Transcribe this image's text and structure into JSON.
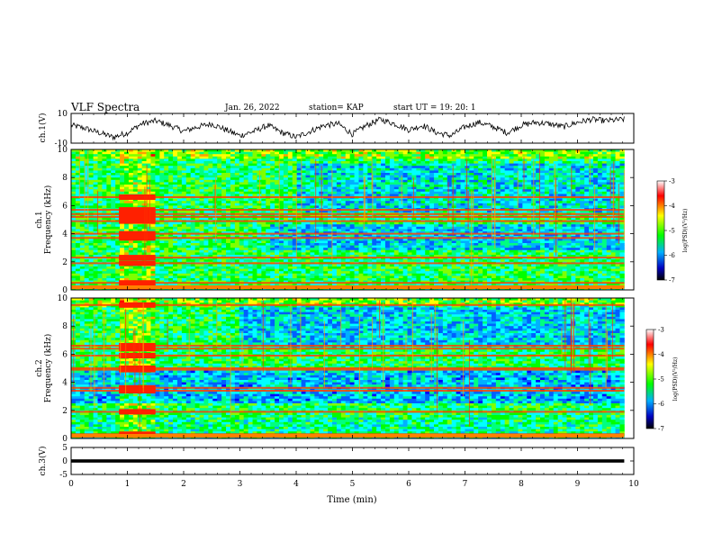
{
  "header": {
    "title": "VLF Spectra",
    "date": "Jan. 26, 2022",
    "station": "station= KAP",
    "start": "start UT =  19: 20: 1"
  },
  "chart_data": [
    {
      "type": "line",
      "panel": "ch1-waveform",
      "ylabel": "ch.1(V)",
      "ylim": [
        -10,
        10
      ],
      "yticks": [
        "10",
        "-10"
      ],
      "xlim": [
        0,
        10
      ],
      "x": [
        0,
        0.25,
        0.5,
        0.75,
        1.0,
        1.25,
        1.5,
        1.75,
        2.0,
        2.25,
        2.5,
        2.75,
        3.0,
        3.25,
        3.5,
        3.75,
        4.0,
        4.25,
        4.5,
        4.75,
        5.0,
        5.25,
        5.5,
        5.75,
        6.0,
        6.25,
        6.5,
        6.75,
        7.0,
        7.25,
        7.5,
        7.75,
        8.0,
        8.25,
        8.5,
        8.75,
        9.0,
        9.25,
        9.5,
        9.83
      ],
      "values": [
        2,
        0,
        -3,
        -6,
        -3,
        3,
        5,
        2,
        -2,
        1,
        3,
        -1,
        -5,
        -2,
        2,
        -3,
        -6,
        -2,
        2,
        3,
        -4,
        2,
        6,
        3,
        -1,
        2,
        -3,
        -5,
        1,
        4,
        1,
        -3,
        2,
        4,
        3,
        1,
        4,
        6,
        5,
        6
      ],
      "line_color": "#000000"
    },
    {
      "type": "heatmap",
      "panel": "ch1-spectrogram",
      "ylabel": "ch.1",
      "ylabel2": "Frequency (kHz)",
      "ylim": [
        0,
        10
      ],
      "yticks": [
        "0",
        "2",
        "4",
        "6",
        "8",
        "10"
      ],
      "xlim": [
        0,
        10
      ],
      "data_extent_min": 9.83,
      "colorbar": {
        "label": "log(PSD)(V²/Hz)",
        "range": [
          -7,
          -3
        ],
        "ticks": [
          "-3",
          "-4",
          "-5",
          "-6",
          "-7"
        ],
        "colors": [
          "#ffffff",
          "#ff0000",
          "#ffff00",
          "#00ff00",
          "#00b0ff",
          "#0000c0",
          "#000000"
        ]
      },
      "bright_block_x": [
        0.85,
        1.5
      ],
      "strong_bands_khz": [
        0.2,
        0.5,
        1.9,
        2.3,
        3.7,
        4.0,
        4.9,
        5.2,
        5.4,
        5.7,
        6.6
      ]
    },
    {
      "type": "heatmap",
      "panel": "ch2-spectrogram",
      "ylabel": "ch.2",
      "ylabel2": "Frequency (kHz)",
      "ylim": [
        0,
        10
      ],
      "yticks": [
        "0",
        "2",
        "4",
        "6",
        "8",
        "10"
      ],
      "xlim": [
        0,
        10
      ],
      "data_extent_min": 9.83,
      "colorbar": {
        "label": "log(PSD)(V²/Hz)",
        "range": [
          -7,
          -3
        ],
        "ticks": [
          "-3",
          "-4",
          "-5",
          "-6",
          "-7"
        ]
      },
      "bright_block_x": [
        0.85,
        1.5
      ],
      "strong_bands_khz": [
        0.3,
        1.9,
        3.4,
        3.6,
        4.9,
        5.0,
        5.9,
        6.4,
        6.6,
        9.5
      ]
    },
    {
      "type": "line",
      "panel": "ch3-waveform",
      "ylabel": "ch.3(V)",
      "ylim": [
        -5,
        5
      ],
      "yticks": [
        "5",
        "0",
        "-5"
      ],
      "xlim": [
        0,
        10
      ],
      "x": [
        0,
        9.83
      ],
      "values": [
        0,
        0
      ],
      "band_halfwidth_v": 0.6,
      "xlabel": "Time (min)",
      "xticks": [
        "0",
        "1",
        "2",
        "3",
        "4",
        "5",
        "6",
        "7",
        "8",
        "9",
        "10"
      ]
    }
  ]
}
